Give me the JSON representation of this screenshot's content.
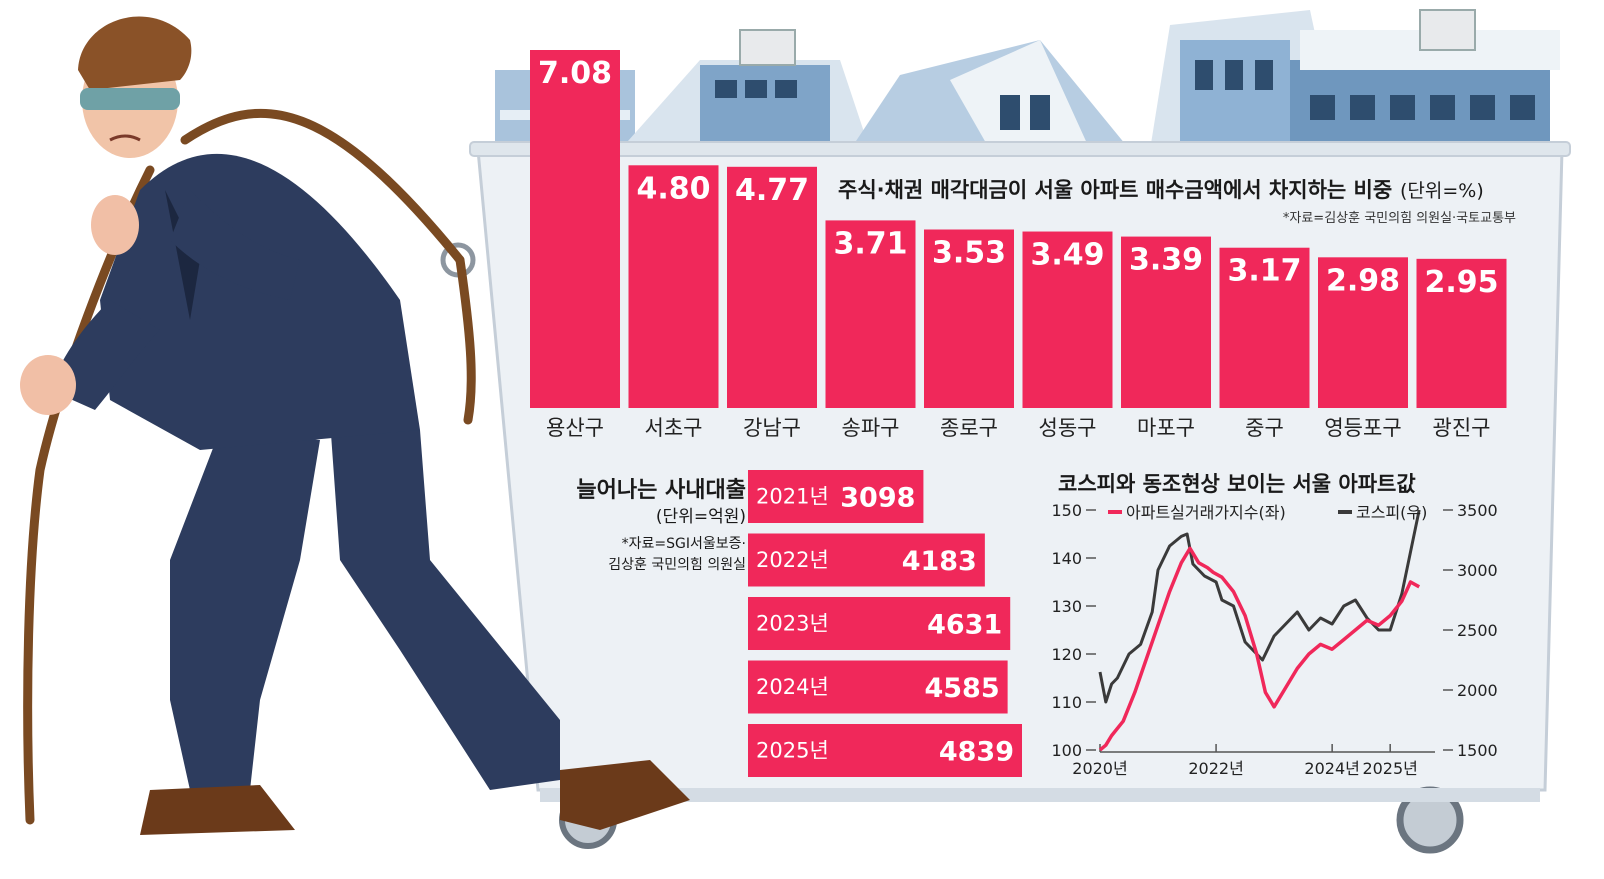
{
  "colors": {
    "bar": "#f0285a",
    "apartment_line": "#f0285a",
    "kospi_line": "#3a3a3a",
    "suit": "#2d3c5e",
    "rope": "#7a4a22"
  },
  "chart_data": [
    {
      "type": "bar",
      "title": "주식·채권 매각대금이 서울 아파트 매수금액에서 차지하는 비중",
      "unit": "(단위=%)",
      "source": "*자료=김상훈 국민의힘 의원실·국토교통부",
      "categories": [
        "용산구",
        "서초구",
        "강남구",
        "송파구",
        "종로구",
        "성동구",
        "마포구",
        "중구",
        "영등포구",
        "광진구"
      ],
      "values": [
        7.08,
        4.8,
        4.77,
        3.71,
        3.53,
        3.49,
        3.39,
        3.17,
        2.98,
        2.95
      ],
      "value_labels": [
        "7.08",
        "4.80",
        "4.77",
        "3.71",
        "3.53",
        "3.49",
        "3.39",
        "3.17",
        "2.98",
        "2.95"
      ]
    },
    {
      "type": "bar",
      "orientation": "horizontal",
      "title": "늘어나는 사내대출",
      "unit": "(단위=억원)",
      "source_line1": "*자료=SGI서울보증·",
      "source_line2": "김상훈 국민의힘 의원실",
      "categories": [
        "2021년",
        "2022년",
        "2023년",
        "2024년",
        "2025년"
      ],
      "values": [
        3098,
        4183,
        4631,
        4585,
        4839
      ],
      "value_labels": [
        "3098",
        "4183",
        "4631",
        "4585",
        "4839"
      ]
    },
    {
      "type": "line",
      "title": "코스피와 동조현상 보이는 서울 아파트값",
      "x_ticks": [
        "2020년",
        "2022년",
        "2024년",
        "2025년"
      ],
      "x_tick_values": [
        2020.0,
        2022.0,
        2024.0,
        2025.0
      ],
      "xlim": [
        2020.0,
        2025.6
      ],
      "y_left_ticks": [
        "150",
        "140",
        "130",
        "120",
        "110",
        "100"
      ],
      "y_left_lim": [
        100,
        150
      ],
      "y_right_ticks": [
        "3500",
        "3000",
        "2500",
        "2000",
        "1500"
      ],
      "y_right_lim": [
        1500,
        3500
      ],
      "series": [
        {
          "name": "아파트실거래가지수(좌)",
          "axis": "left",
          "x": [
            2020.0,
            2020.1,
            2020.2,
            2020.4,
            2020.6,
            2020.8,
            2021.0,
            2021.2,
            2021.4,
            2021.55,
            2021.7,
            2021.85,
            2021.95,
            2022.1,
            2022.3,
            2022.5,
            2022.7,
            2022.85,
            2023.0,
            2023.2,
            2023.4,
            2023.6,
            2023.8,
            2024.0,
            2024.2,
            2024.4,
            2024.6,
            2024.8,
            2025.0,
            2025.2,
            2025.35,
            2025.5
          ],
          "y": [
            100,
            101,
            103,
            106,
            112,
            119,
            126,
            133,
            139,
            142,
            139,
            138,
            137,
            136,
            133,
            128,
            120,
            112,
            109,
            113,
            117,
            120,
            122,
            121,
            123,
            125,
            127,
            126,
            128,
            131,
            135,
            134
          ]
        },
        {
          "name": "코스피(우)",
          "axis": "right",
          "x": [
            2020.0,
            2020.1,
            2020.2,
            2020.3,
            2020.5,
            2020.7,
            2020.9,
            2021.0,
            2021.2,
            2021.4,
            2021.5,
            2021.6,
            2021.8,
            2022.0,
            2022.1,
            2022.3,
            2022.5,
            2022.7,
            2022.8,
            2023.0,
            2023.2,
            2023.4,
            2023.6,
            2023.8,
            2024.0,
            2024.2,
            2024.4,
            2024.6,
            2024.8,
            2025.0,
            2025.2,
            2025.35,
            2025.5
          ],
          "y": [
            2150,
            1900,
            2050,
            2100,
            2300,
            2380,
            2650,
            3000,
            3200,
            3280,
            3300,
            3050,
            2950,
            2900,
            2750,
            2700,
            2400,
            2300,
            2250,
            2450,
            2550,
            2650,
            2500,
            2600,
            2550,
            2700,
            2750,
            2600,
            2500,
            2500,
            2800,
            3150,
            3500
          ]
        }
      ]
    }
  ]
}
